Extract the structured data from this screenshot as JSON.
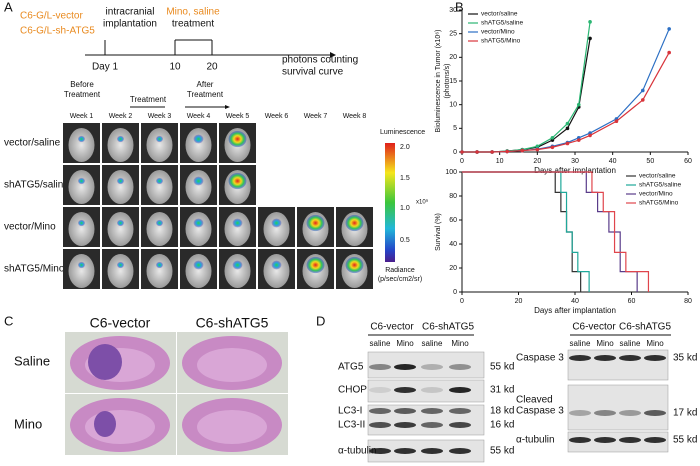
{
  "panels": {
    "a": "A",
    "b": "B",
    "c": "C",
    "d": "D"
  },
  "panel_a": {
    "cell_lines": [
      "C6-G/L-vector",
      "C6-G/L-sh-ATG5"
    ],
    "timeline": {
      "implantation": [
        "intracranial",
        "implantation"
      ],
      "drug": "Mino, saline",
      "treatment": "treatment",
      "days": [
        "Day 1",
        "10",
        "20"
      ],
      "readout": [
        "photons counting",
        "survival curve"
      ]
    },
    "phases": [
      [
        "Before",
        "Treatment"
      ],
      [
        "Treatment"
      ],
      [
        "After",
        "Treatment"
      ]
    ],
    "weeks": [
      "Week 1",
      "Week 2",
      "Week 3",
      "Week 4",
      "Week 5",
      "Week 6",
      "Week 7",
      "Week 8"
    ],
    "groups": [
      "vector/saline",
      "shATG5/saline",
      "vector/Mino",
      "shATG5/Mino"
    ],
    "colorbar": {
      "title": "Luminescence",
      "labels": [
        "2.0",
        "1.5",
        "1.0",
        "0.5"
      ],
      "scale": "x10⁹",
      "unit": [
        "Radiance",
        "(p/sec/cm2/sr)"
      ]
    }
  },
  "chart_data": [
    {
      "type": "line",
      "x_label": "Days after implantation",
      "y_label": [
        "Bioluminescence in Tumor (x10⁶)",
        "(photons/s)"
      ],
      "xlim": [
        0,
        60
      ],
      "xticks": [
        0,
        10,
        20,
        30,
        40,
        50,
        60
      ],
      "ylim": [
        0,
        30
      ],
      "yticks": [
        0,
        5,
        10,
        15,
        20,
        25,
        30
      ],
      "legend": "upper left",
      "series": [
        {
          "name": "vector/saline",
          "color": "#111111",
          "x": [
            0,
            4,
            8,
            12,
            16,
            20,
            24,
            28,
            31,
            34
          ],
          "values": [
            0,
            0,
            0,
            0.2,
            0.5,
            1,
            2.5,
            5,
            9.5,
            24
          ]
        },
        {
          "name": "shATG5/saline",
          "color": "#2bb673",
          "x": [
            0,
            4,
            8,
            12,
            16,
            20,
            24,
            28,
            31,
            34
          ],
          "values": [
            0,
            0,
            0,
            0.2,
            0.5,
            1.2,
            3,
            6,
            10,
            27.5
          ]
        },
        {
          "name": "vector/Mino",
          "color": "#2b6fc4",
          "x": [
            0,
            4,
            8,
            12,
            16,
            20,
            24,
            28,
            31,
            34,
            41,
            48,
            55
          ],
          "values": [
            0,
            0,
            0,
            0.1,
            0.3,
            0.6,
            1.2,
            2,
            3,
            4,
            7,
            13,
            26
          ]
        },
        {
          "name": "shATG5/Mino",
          "color": "#d8343b",
          "x": [
            0,
            4,
            8,
            12,
            16,
            20,
            24,
            28,
            31,
            34,
            41,
            48,
            55
          ],
          "values": [
            0,
            0,
            0,
            0.1,
            0.3,
            0.5,
            1,
            1.8,
            2.5,
            3.5,
            6.5,
            11,
            21
          ]
        }
      ]
    },
    {
      "type": "step",
      "x_label": "Days after implantation",
      "y_label": [
        "Survival (%)"
      ],
      "xlim": [
        0,
        80
      ],
      "xticks": [
        0,
        20,
        40,
        60,
        80
      ],
      "ylim": [
        0,
        100
      ],
      "yticks": [
        0,
        20,
        40,
        60,
        80,
        100
      ],
      "legend": "upper right",
      "series": [
        {
          "name": "vector/saline",
          "color": "#333333",
          "x": [
            0,
            33,
            35,
            37,
            39,
            42
          ],
          "values": [
            100,
            83,
            67,
            50,
            17,
            0
          ]
        },
        {
          "name": "shATG5/saline",
          "color": "#1fa89a",
          "x": [
            0,
            35,
            37,
            39,
            41,
            45
          ],
          "values": [
            100,
            83,
            50,
            33,
            17,
            0
          ]
        },
        {
          "name": "vector/Mino",
          "color": "#5a3d8a",
          "x": [
            0,
            44,
            48,
            52,
            56,
            62
          ],
          "values": [
            100,
            83,
            67,
            50,
            17,
            0
          ]
        },
        {
          "name": "shATG5/Mino",
          "color": "#e0454c",
          "x": [
            0,
            46,
            50,
            54,
            58,
            66
          ],
          "values": [
            100,
            83,
            67,
            33,
            17,
            0
          ]
        }
      ]
    }
  ],
  "panel_c": {
    "columns": [
      "C6-vector",
      "C6-shATG5"
    ],
    "rows": [
      "Saline",
      "Mino"
    ]
  },
  "panel_d": {
    "left": {
      "groups": [
        "C6-vector",
        "C6-shATG5"
      ],
      "lanes": [
        "saline",
        "Mino",
        "saline",
        "Mino"
      ],
      "proteins": [
        [
          "ATG5"
        ],
        [
          "CHOP"
        ],
        [
          "LC3-I"
        ],
        [
          "LC3-II"
        ],
        [
          "α-tubulin"
        ]
      ],
      "sizes": [
        "55 kd",
        "31 kd",
        "18 kd",
        "16 kd",
        "55 kd"
      ]
    },
    "right": {
      "groups": [
        "C6-vector",
        "C6-shATG5"
      ],
      "lanes": [
        "saline",
        "Mino",
        "saline",
        "Mino"
      ],
      "proteins": [
        [
          "Caspase 3"
        ],
        [
          "Cleaved",
          "Caspase 3"
        ],
        [
          "α-tubulin"
        ]
      ],
      "sizes": [
        "35 kd",
        "17 kd",
        "55 kd"
      ]
    }
  }
}
